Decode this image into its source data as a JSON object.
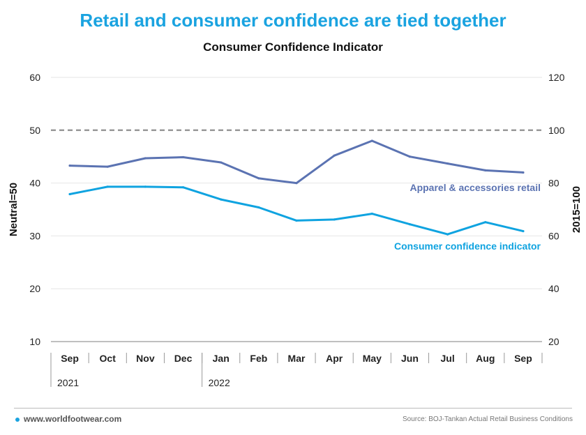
{
  "header": {
    "title": "Retail and consumer confidence are tied together",
    "subtitle": "Consumer Confidence Indicator"
  },
  "footer": {
    "website": "www.worldfootwear.com",
    "source": "Source: BOJ-Tankan Actual Retail Business Conditions"
  },
  "colors": {
    "title": "#1aa3e0",
    "apparel_series": "#5b73b2",
    "consumer_series": "#0fa3e0",
    "reference_line": "#999999"
  },
  "chart_data": {
    "type": "line",
    "categories": [
      "Sep",
      "Oct",
      "Nov",
      "Dec",
      "Jan",
      "Feb",
      "Mar",
      "Apr",
      "May",
      "Jun",
      "Jul",
      "Aug",
      "Sep"
    ],
    "year_labels": [
      {
        "label": "2021",
        "start_index": 0
      },
      {
        "label": "2022",
        "start_index": 4
      }
    ],
    "left_axis": {
      "label": "Neutral=50",
      "ylim": [
        10,
        60
      ],
      "ticks": [
        10,
        20,
        30,
        40,
        50,
        60
      ]
    },
    "right_axis": {
      "label": "2015=100",
      "ylim": [
        20,
        120
      ],
      "ticks": [
        20,
        40,
        60,
        80,
        100,
        120
      ]
    },
    "reference_line": {
      "value": 50,
      "axis": "left",
      "style": "dashed"
    },
    "grid": true,
    "series": [
      {
        "name": "Apparel & accessories retail",
        "axis": "left",
        "color": "#5b73b2",
        "values": [
          43.3,
          43.1,
          44.7,
          44.9,
          43.9,
          40.9,
          40.0,
          45.2,
          48.0,
          45.0,
          43.7,
          42.4,
          42.0
        ]
      },
      {
        "name": "Consumer confidence indicator",
        "axis": "left",
        "color": "#0fa3e0",
        "values": [
          37.9,
          39.3,
          39.3,
          39.2,
          36.9,
          35.4,
          32.9,
          33.1,
          34.2,
          32.2,
          30.3,
          32.6,
          30.9
        ]
      }
    ]
  }
}
